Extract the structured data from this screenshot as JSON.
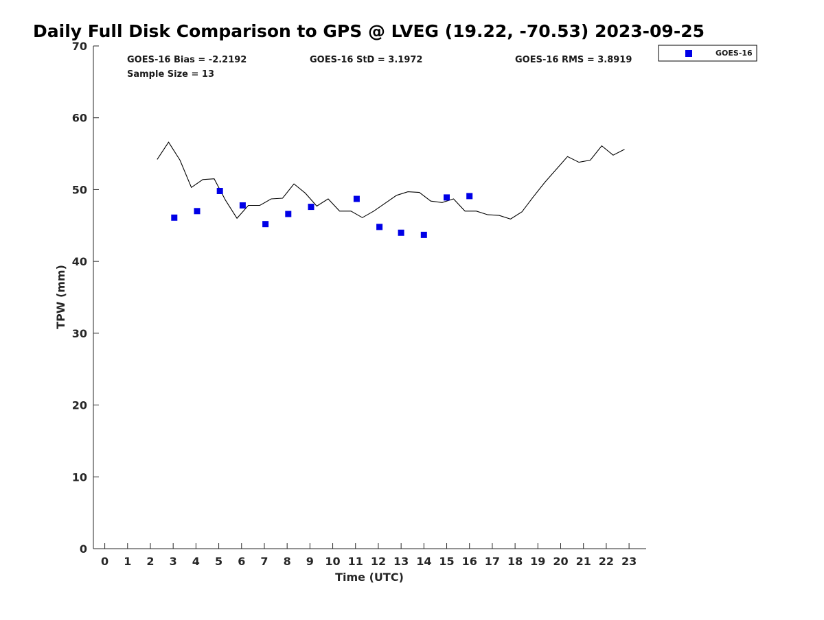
{
  "chart_data": {
    "type": "scatter",
    "title": "Daily Full Disk Comparison to GPS @ LVEG (19.22, -70.53) 2023-09-25",
    "xlabel": "Time (UTC)",
    "ylabel": "TPW (mm)",
    "xlim": [
      -0.5,
      23.75
    ],
    "ylim": [
      0,
      70
    ],
    "xticks": [
      "0",
      "1",
      "2",
      "3",
      "4",
      "5",
      "6",
      "7",
      "8",
      "9",
      "10",
      "11",
      "12",
      "13",
      "14",
      "15",
      "16",
      "17",
      "18",
      "19",
      "20",
      "21",
      "22",
      "23"
    ],
    "yticks": [
      "0",
      "10",
      "20",
      "30",
      "40",
      "50",
      "60",
      "70"
    ],
    "grid": false,
    "legend_position": "top-right, outside plot",
    "stats": {
      "bias": "GOES-16 Bias = -2.2192",
      "std": "GOES-16 StD = 3.1972",
      "rms": "GOES-16 RMS = 3.8919",
      "sample": "Sample Size = 13"
    },
    "series": [
      {
        "name": "GOES-16",
        "kind": "scatter",
        "marker": "square",
        "color": "#0000e6",
        "x": [
          3.05,
          4.05,
          5.05,
          6.05,
          7.05,
          8.05,
          9.05,
          11.05,
          12.05,
          13.0,
          14.0,
          15.0,
          16.0
        ],
        "y": [
          46.1,
          47.0,
          49.8,
          47.8,
          45.2,
          46.6,
          47.6,
          48.7,
          44.8,
          44.0,
          43.7,
          48.9,
          49.1
        ]
      },
      {
        "name": "",
        "kind": "line",
        "color": "#000000",
        "x": [
          2.3,
          2.8,
          3.3,
          3.8,
          4.3,
          4.8,
          5.3,
          5.8,
          6.3,
          6.8,
          7.3,
          7.8,
          8.3,
          8.8,
          9.3,
          9.8,
          10.3,
          10.8,
          11.3,
          11.8,
          12.3,
          12.8,
          13.3,
          13.8,
          14.3,
          14.8,
          15.3,
          15.8,
          16.3,
          16.8,
          17.3,
          17.8,
          18.3,
          18.8,
          19.3,
          19.8,
          20.3,
          20.8,
          21.3,
          21.8,
          22.3,
          22.8
        ],
        "y": [
          54.2,
          56.6,
          54.1,
          50.3,
          51.4,
          51.5,
          48.5,
          46.0,
          47.8,
          47.8,
          48.7,
          48.8,
          50.8,
          49.5,
          47.7,
          48.7,
          47.0,
          47.0,
          46.1,
          47.0,
          48.1,
          49.2,
          49.7,
          49.6,
          48.4,
          48.2,
          48.7,
          47.0,
          47.0,
          46.5,
          46.4,
          45.9,
          46.9,
          49.0,
          51.0,
          52.8,
          54.6,
          53.8,
          54.1,
          56.1,
          54.8,
          55.6
        ]
      }
    ]
  }
}
